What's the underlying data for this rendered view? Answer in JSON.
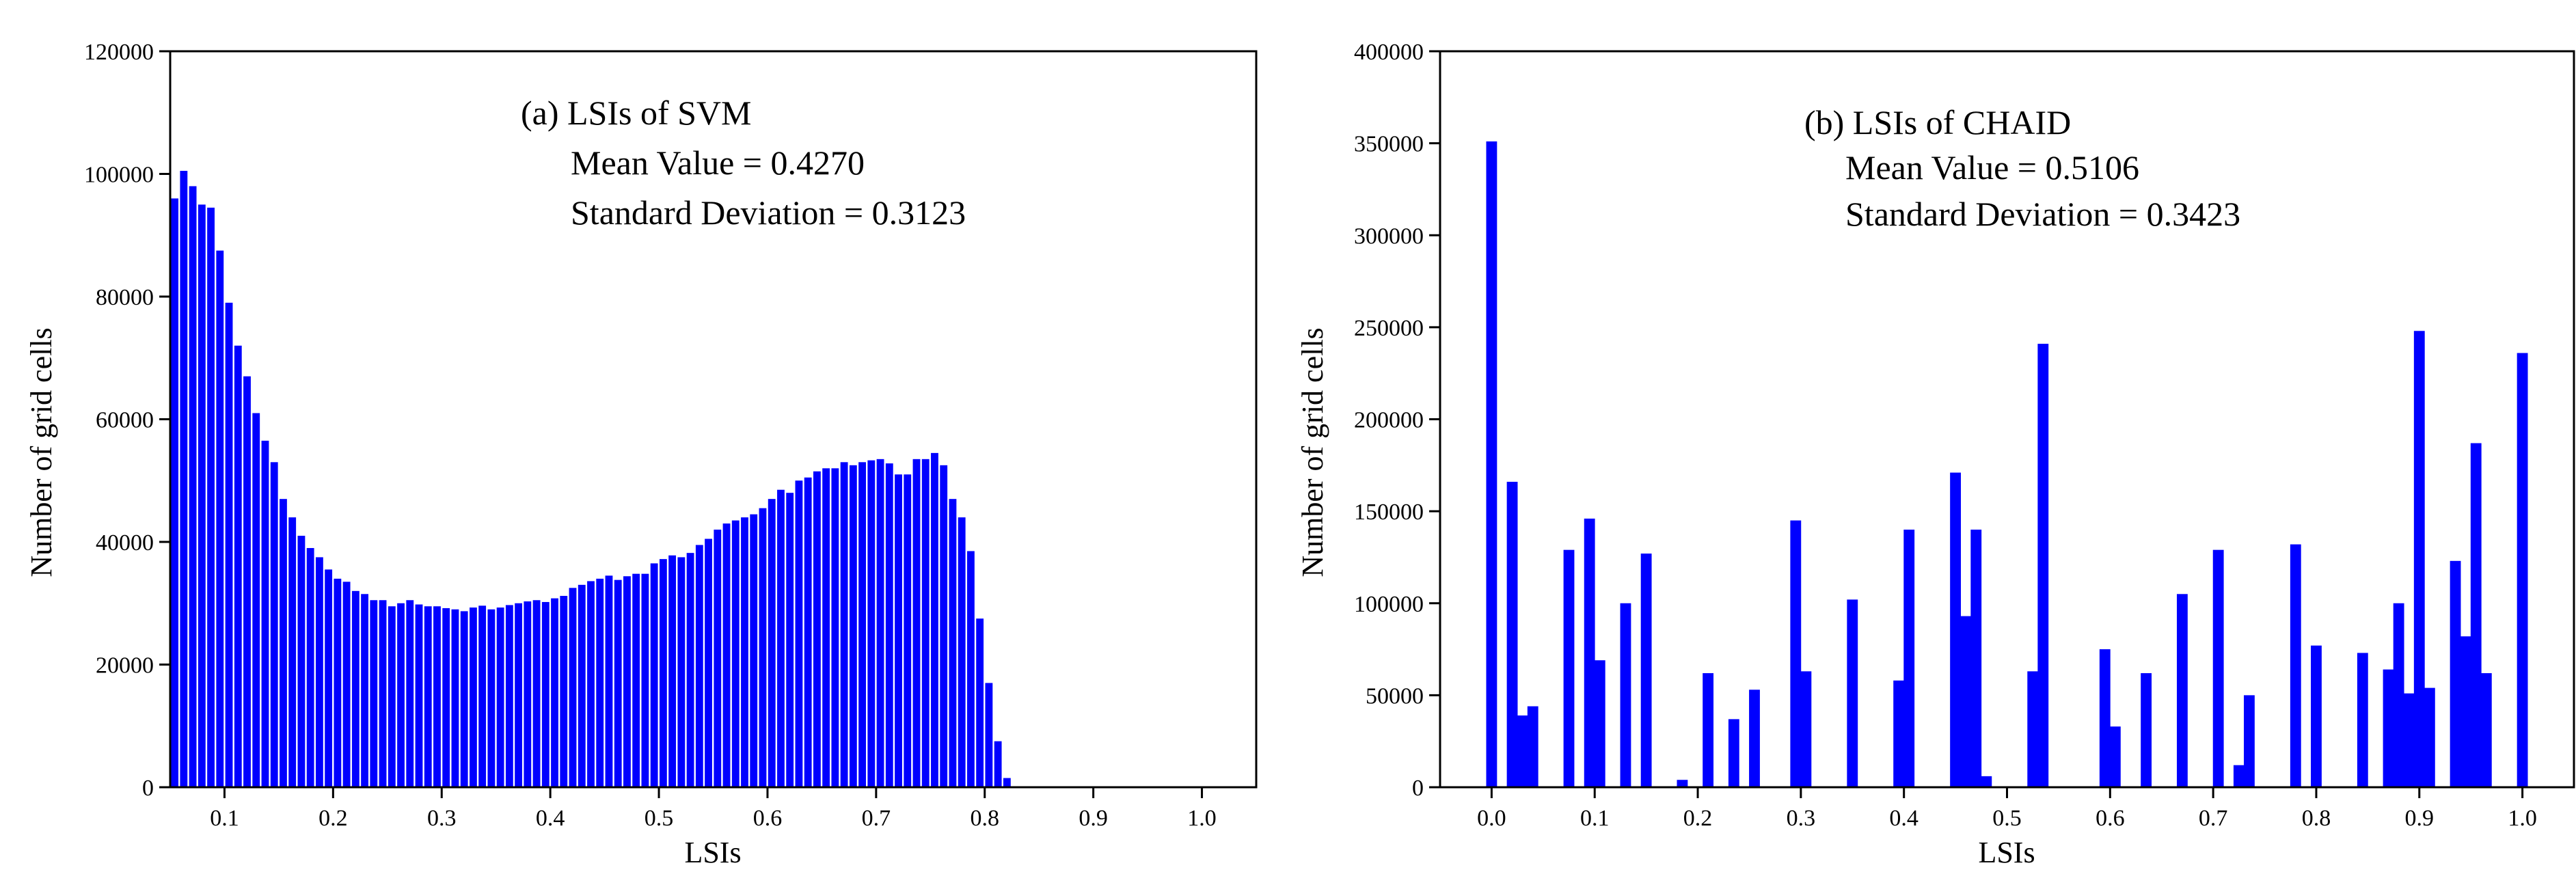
{
  "colors": {
    "bar": "#0000ff",
    "axis": "#000000",
    "background": "#ffffff"
  },
  "chart_data": [
    {
      "type": "bar",
      "title": "(a) LSIs of SVM",
      "annotations": [
        "Mean Value = 0.4270",
        "Standard Deviation = 0.3123"
      ],
      "xlabel": "LSIs",
      "ylabel": "Number of grid cells",
      "xlim": [
        0.05,
        1.05
      ],
      "ylim": [
        0,
        120000
      ],
      "xticks": [
        "0.1",
        "0.2",
        "0.3",
        "0.4",
        "0.5",
        "0.6",
        "0.7",
        "0.8",
        "0.9",
        "1.0"
      ],
      "yticks": [
        "0",
        "20000",
        "40000",
        "60000",
        "80000",
        "100000",
        "120000"
      ],
      "bin_start": 0.05,
      "bin_width": 0.00833,
      "values": [
        96000,
        100500,
        98000,
        95000,
        94500,
        87500,
        79000,
        72000,
        67000,
        61000,
        56500,
        53000,
        47000,
        44000,
        41000,
        39000,
        37500,
        35500,
        34000,
        33500,
        32000,
        31500,
        30500,
        30500,
        29500,
        30000,
        30500,
        29800,
        29500,
        29500,
        29200,
        29000,
        28700,
        29300,
        29600,
        29000,
        29300,
        29700,
        30000,
        30300,
        30500,
        30200,
        30800,
        31200,
        32500,
        33000,
        33600,
        34000,
        34500,
        33800,
        34400,
        34800,
        34800,
        36500,
        37200,
        37800,
        37500,
        38200,
        39500,
        40500,
        42000,
        43000,
        43500,
        44000,
        44500,
        45500,
        47000,
        48500,
        48000,
        50000,
        50500,
        51500,
        52000,
        52000,
        53000,
        52500,
        53000,
        53300,
        53500,
        52800,
        51000,
        51000,
        53500,
        53500,
        54500,
        52500,
        47000,
        44000,
        38500,
        27500,
        17000,
        7500,
        1500
      ]
    },
    {
      "type": "bar",
      "title": "(b) LSIs of CHAID",
      "annotations": [
        "Mean Value = 0.5106",
        "Standard Deviation = 0.3423"
      ],
      "xlabel": "LSIs",
      "ylabel": "Number of grid cells",
      "xlim": [
        -0.05,
        1.05
      ],
      "ylim": [
        0,
        400000
      ],
      "xticks": [
        "0.0",
        "0.1",
        "0.2",
        "0.3",
        "0.4",
        "0.5",
        "0.6",
        "0.7",
        "0.8",
        "0.9",
        "1.0"
      ],
      "yticks": [
        "0",
        "50000",
        "100000",
        "150000",
        "200000",
        "250000",
        "300000",
        "350000",
        "400000"
      ],
      "bar_width": 0.0105,
      "bars": [
        {
          "x": 0.0,
          "y": 351000
        },
        {
          "x": 0.02,
          "y": 166000
        },
        {
          "x": 0.03,
          "y": 39000
        },
        {
          "x": 0.04,
          "y": 44000
        },
        {
          "x": 0.075,
          "y": 129000
        },
        {
          "x": 0.095,
          "y": 146000
        },
        {
          "x": 0.105,
          "y": 69000
        },
        {
          "x": 0.13,
          "y": 100000
        },
        {
          "x": 0.15,
          "y": 127000
        },
        {
          "x": 0.185,
          "y": 4000
        },
        {
          "x": 0.21,
          "y": 62000
        },
        {
          "x": 0.235,
          "y": 37000
        },
        {
          "x": 0.255,
          "y": 53000
        },
        {
          "x": 0.295,
          "y": 145000
        },
        {
          "x": 0.305,
          "y": 63000
        },
        {
          "x": 0.35,
          "y": 102000
        },
        {
          "x": 0.395,
          "y": 58000
        },
        {
          "x": 0.405,
          "y": 140000
        },
        {
          "x": 0.45,
          "y": 171000
        },
        {
          "x": 0.46,
          "y": 93000
        },
        {
          "x": 0.47,
          "y": 140000
        },
        {
          "x": 0.48,
          "y": 6000
        },
        {
          "x": 0.525,
          "y": 63000
        },
        {
          "x": 0.535,
          "y": 241000
        },
        {
          "x": 0.595,
          "y": 75000
        },
        {
          "x": 0.605,
          "y": 33000
        },
        {
          "x": 0.635,
          "y": 62000
        },
        {
          "x": 0.67,
          "y": 105000
        },
        {
          "x": 0.705,
          "y": 129000
        },
        {
          "x": 0.725,
          "y": 12000
        },
        {
          "x": 0.735,
          "y": 50000
        },
        {
          "x": 0.78,
          "y": 132000
        },
        {
          "x": 0.8,
          "y": 77000
        },
        {
          "x": 0.845,
          "y": 73000
        },
        {
          "x": 0.87,
          "y": 64000
        },
        {
          "x": 0.88,
          "y": 100000
        },
        {
          "x": 0.89,
          "y": 51000
        },
        {
          "x": 0.9,
          "y": 248000
        },
        {
          "x": 0.91,
          "y": 54000
        },
        {
          "x": 0.935,
          "y": 123000
        },
        {
          "x": 0.945,
          "y": 82000
        },
        {
          "x": 0.955,
          "y": 187000
        },
        {
          "x": 0.965,
          "y": 62000
        },
        {
          "x": 1.0,
          "y": 236000
        }
      ]
    }
  ]
}
